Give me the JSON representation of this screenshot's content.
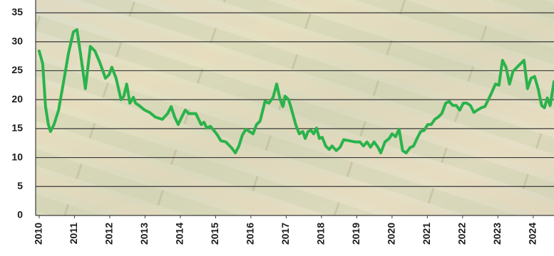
{
  "chart_data": {
    "type": "line",
    "color": "#2ab34b",
    "grid": true,
    "xlim": [
      2009.9,
      2024.59
    ],
    "xticks": [
      2010,
      2011,
      2012,
      2013,
      2014,
      2015,
      2016,
      2017,
      2018,
      2019,
      2020,
      2021,
      2022,
      2023,
      2024
    ],
    "ylim": [
      0,
      35
    ],
    "yticks": [
      0,
      5,
      10,
      15,
      20,
      25,
      30,
      35
    ],
    "x": [
      2010.0,
      2010.1,
      2010.18,
      2010.26,
      2010.32,
      2010.42,
      2010.55,
      2010.71,
      2010.83,
      2010.97,
      2011.07,
      2011.17,
      2011.31,
      2011.45,
      2011.58,
      2011.72,
      2011.88,
      2011.98,
      2012.06,
      2012.18,
      2012.32,
      2012.4,
      2012.48,
      2012.57,
      2012.67,
      2012.73,
      2012.83,
      2012.99,
      2013.13,
      2013.29,
      2013.49,
      2013.64,
      2013.74,
      2013.84,
      2013.94,
      2014.04,
      2014.14,
      2014.24,
      2014.44,
      2014.59,
      2014.67,
      2014.75,
      2014.85,
      2014.95,
      2015.05,
      2015.15,
      2015.29,
      2015.45,
      2015.56,
      2015.66,
      2015.76,
      2015.86,
      2015.96,
      2016.06,
      2016.16,
      2016.26,
      2016.4,
      2016.51,
      2016.63,
      2016.73,
      2016.83,
      2016.91,
      2016.97,
      2017.07,
      2017.13,
      2017.27,
      2017.37,
      2017.47,
      2017.54,
      2017.62,
      2017.7,
      2017.78,
      2017.86,
      2017.94,
      2018.02,
      2018.12,
      2018.22,
      2018.3,
      2018.42,
      2018.53,
      2018.63,
      2018.79,
      2018.95,
      2019.09,
      2019.19,
      2019.29,
      2019.39,
      2019.49,
      2019.6,
      2019.68,
      2019.8,
      2019.92,
      2020.0,
      2020.1,
      2020.2,
      2020.3,
      2020.4,
      2020.51,
      2020.61,
      2020.71,
      2020.81,
      2020.91,
      2021.01,
      2021.11,
      2021.21,
      2021.31,
      2021.41,
      2021.52,
      2021.62,
      2021.72,
      2021.82,
      2021.92,
      2022.02,
      2022.12,
      2022.22,
      2022.32,
      2022.42,
      2022.53,
      2022.63,
      2022.73,
      2022.83,
      2022.93,
      2023.03,
      2023.13,
      2023.23,
      2023.33,
      2023.43,
      2023.54,
      2023.64,
      2023.74,
      2023.84,
      2023.94,
      2024.04,
      2024.14,
      2024.24,
      2024.32,
      2024.4,
      2024.48,
      2024.59
    ],
    "values": [
      28.4,
      26.2,
      18.8,
      15.7,
      14.5,
      15.7,
      18.2,
      23.7,
      28.0,
      31.7,
      32.1,
      28.0,
      21.9,
      29.2,
      28.4,
      26.4,
      23.7,
      24.3,
      25.6,
      23.7,
      20.0,
      20.6,
      22.7,
      19.4,
      20.4,
      19.4,
      19.0,
      18.2,
      17.8,
      17.0,
      16.6,
      17.6,
      18.8,
      17.0,
      15.7,
      17.0,
      18.2,
      17.6,
      17.6,
      15.7,
      16.1,
      15.1,
      15.4,
      14.7,
      13.9,
      12.9,
      12.7,
      11.7,
      10.8,
      12.0,
      13.9,
      14.9,
      14.5,
      14.1,
      15.7,
      16.3,
      19.7,
      19.4,
      20.4,
      22.7,
      20.0,
      18.8,
      20.6,
      20.0,
      18.8,
      15.7,
      14.1,
      14.5,
      13.3,
      14.5,
      14.7,
      14.1,
      15.1,
      13.3,
      13.5,
      12.0,
      11.4,
      12.0,
      11.2,
      11.8,
      13.1,
      12.9,
      12.7,
      12.7,
      12.0,
      12.7,
      11.8,
      12.7,
      11.8,
      10.8,
      12.7,
      13.3,
      14.1,
      13.6,
      14.9,
      11.2,
      10.8,
      11.7,
      12.0,
      13.3,
      14.5,
      14.7,
      15.7,
      15.7,
      16.6,
      17.0,
      17.6,
      19.4,
      19.7,
      19.0,
      19.0,
      18.2,
      19.4,
      19.4,
      19.0,
      17.8,
      18.2,
      18.6,
      18.8,
      20.0,
      21.3,
      22.7,
      22.5,
      26.8,
      25.6,
      22.7,
      24.9,
      25.6,
      26.2,
      26.8,
      21.9,
      23.7,
      24.0,
      21.9,
      19.0,
      18.6,
      20.3,
      19.0,
      23.1
    ]
  }
}
